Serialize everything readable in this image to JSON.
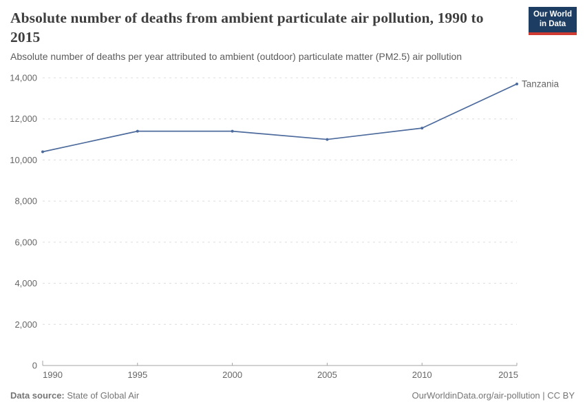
{
  "header": {
    "title": "Absolute number of deaths from ambient particulate air pollution, 1990 to 2015",
    "subtitle": "Absolute number of deaths per year attributed to ambient (outdoor) particulate matter (PM2.5) air pollution"
  },
  "logo": {
    "line1": "Our World",
    "line2": "in Data",
    "bg_color": "#1d3d63",
    "stripe_color": "#cf3b31"
  },
  "chart_data": {
    "type": "line",
    "title": "Absolute number of deaths from ambient particulate air pollution, 1990 to 2015",
    "x": [
      1990,
      1995,
      2000,
      2005,
      2010,
      2015
    ],
    "x_tick_labels": [
      "1990",
      "1995",
      "2000",
      "2005",
      "2010",
      "2015"
    ],
    "series": [
      {
        "name": "Tanzania",
        "values": [
          10400,
          11400,
          11400,
          11000,
          11550,
          13700
        ],
        "color": "#4c6a9c"
      }
    ],
    "xlabel": "",
    "ylabel": "",
    "ylim": [
      0,
      14000
    ],
    "ytick_step": 2000,
    "grid": true,
    "gridline_color": "#dcdcdc",
    "axis_color": "#a3a3a3",
    "tick_label_color": "#666666",
    "legend_position": "end-of-line"
  },
  "footer": {
    "source_label": "Data source:",
    "source_value": " State of Global Air",
    "right_text": "OurWorldinData.org/air-pollution | CC BY"
  }
}
